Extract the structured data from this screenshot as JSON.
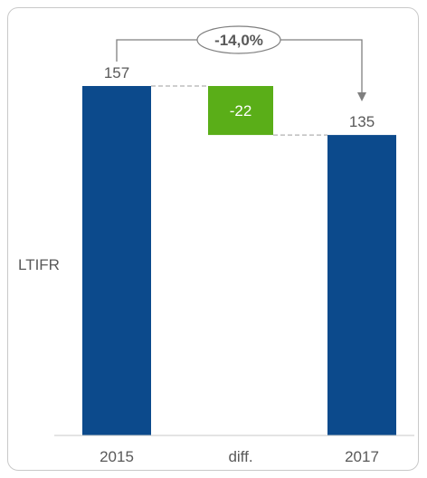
{
  "chart_data": {
    "type": "waterfall",
    "categories": [
      "2015",
      "diff.",
      "2017"
    ],
    "values": [
      157,
      -22,
      135
    ],
    "value_labels": [
      "157",
      "-22",
      "135"
    ],
    "ylabel": "LTIFR",
    "ylim": [
      0,
      157
    ],
    "grid": false,
    "colors": {
      "total": "#0c4a8c",
      "delta_decrease": "#5aae18",
      "delta_label": "#ffffff",
      "connector": "#9e9e9e"
    },
    "annotation": {
      "text": "-14,0%",
      "from": "2015",
      "to": "2017"
    }
  }
}
